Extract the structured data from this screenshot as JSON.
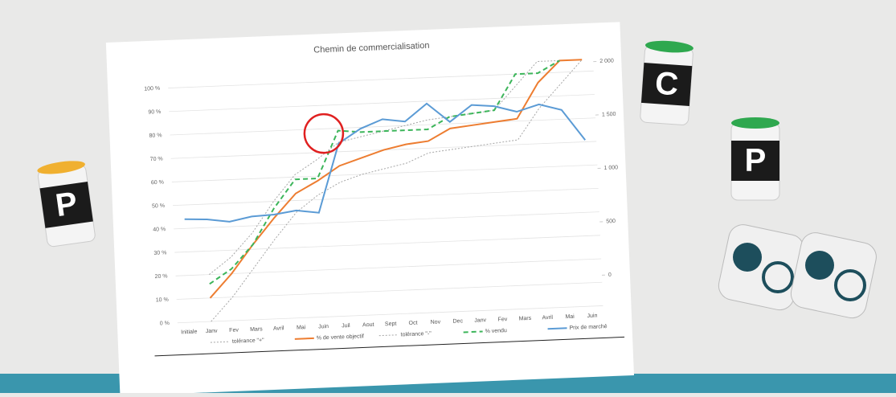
{
  "chart_data": {
    "type": "line",
    "title": "Chemin de commercialisation",
    "categories": [
      "Initiale",
      "Janv",
      "Fev",
      "Mars",
      "Avril",
      "Mai",
      "Juin",
      "Juil",
      "Aout",
      "Sept",
      "Oct",
      "Nov",
      "Dec",
      "Janv",
      "Fev",
      "Mars",
      "Avril",
      "Mai",
      "Juin"
    ],
    "ylim": [
      0,
      105
    ],
    "yticks": [
      {
        "value": 0,
        "label": "0 %"
      },
      {
        "value": 10,
        "label": "10 %"
      },
      {
        "value": 20,
        "label": "20 %"
      },
      {
        "value": 30,
        "label": "30 %"
      },
      {
        "value": 40,
        "label": "40 %"
      },
      {
        "value": 50,
        "label": "50 %"
      },
      {
        "value": 60,
        "label": "60 %"
      },
      {
        "value": 70,
        "label": "70 %"
      },
      {
        "value": 80,
        "label": "80 %"
      },
      {
        "value": 90,
        "label": "90 %"
      },
      {
        "value": 100,
        "label": "100 %"
      }
    ],
    "y2lim": [
      -286,
      2022
    ],
    "y2ticks": [
      0,
      500,
      {
        "value": 1000,
        "label": "1 000"
      },
      {
        "value": 1500,
        "label": "1 500"
      },
      {
        "value": 2000,
        "label": "2 000"
      }
    ],
    "grid": true,
    "series": [
      {
        "name": "tolérance \"+\"",
        "color": "#a6a6a6",
        "dash": "dotted",
        "values": [
          null,
          20,
          27,
          37,
          50,
          61,
          67,
          74,
          76,
          78,
          80,
          82,
          83,
          84,
          85,
          95,
          105,
          105,
          105
        ]
      },
      {
        "name": "% de vente objectif",
        "color": "#ed7d31",
        "dash": "solid",
        "values": [
          null,
          10,
          20,
          32,
          43,
          53,
          58,
          64,
          67,
          70,
          72,
          73,
          78,
          79,
          80,
          81,
          96,
          105,
          105
        ]
      },
      {
        "name": "tolérance \"-\"",
        "color": "#a6a6a6",
        "dash": "dotted",
        "values": [
          null,
          0,
          10,
          22,
          34,
          45,
          52,
          57,
          60,
          62,
          64,
          68,
          69,
          70,
          71,
          72,
          85,
          95,
          105
        ]
      },
      {
        "name": "% vendu",
        "color": "#3cb55a",
        "dash": "dashed",
        "values": [
          null,
          16,
          22,
          32,
          47,
          59,
          59,
          79,
          78,
          78,
          78,
          78,
          83,
          84,
          85,
          100,
          100,
          105,
          null
        ]
      },
      {
        "name": "Prix de marché",
        "color": "#5b9bd5",
        "dash": "solid",
        "axis": "y2",
        "values": [
          680,
          670,
          640,
          680,
          690,
          720,
          690,
          1330,
          1460,
          1540,
          1510,
          1670,
          1490,
          1640,
          1620,
          1560,
          1620,
          1560,
          1270
        ]
      }
    ]
  },
  "tokens": [
    "P",
    "C",
    "P"
  ]
}
